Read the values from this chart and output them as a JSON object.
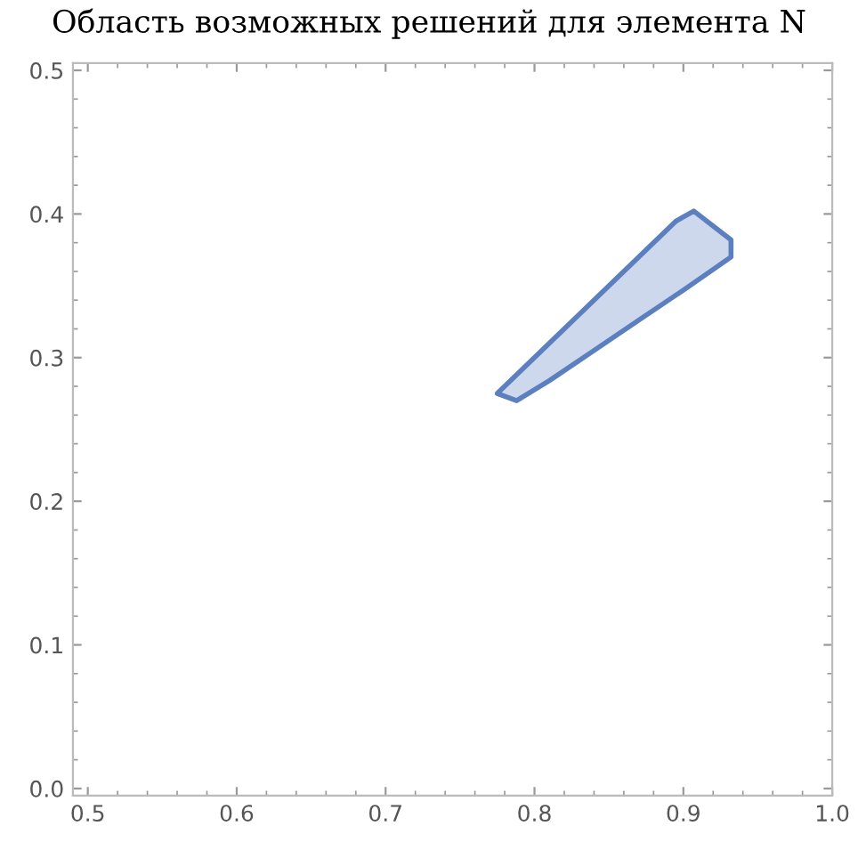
{
  "chart_data": {
    "type": "area",
    "title": "Область возможных решений для элемента N",
    "series": [
      {
        "color": "#5b7fbf",
        "x": [
          0.775,
          0.835,
          0.895,
          0.907,
          0.932,
          0.932,
          0.9,
          0.87,
          0.84,
          0.81,
          0.788,
          0.775
        ],
        "values": [
          0.275,
          0.335,
          0.395,
          0.402,
          0.382,
          0.37,
          0.347,
          0.326,
          0.305,
          0.284,
          0.27,
          0.275
        ]
      }
    ],
    "xlim": [
      0.49,
      1.0
    ],
    "ylim": [
      -0.005,
      0.505
    ],
    "xticks": [
      {
        "value": 0.5,
        "label": "0.5"
      },
      {
        "value": 0.6,
        "label": "0.6"
      },
      {
        "value": 0.7,
        "label": "0.7"
      },
      {
        "value": 0.8,
        "label": "0.8"
      },
      {
        "value": 0.9,
        "label": "0.9"
      },
      {
        "value": 1.0,
        "label": "1.0"
      }
    ],
    "yticks": [
      {
        "value": 0.0,
        "label": "0.0"
      },
      {
        "value": 0.1,
        "label": "0.1"
      },
      {
        "value": 0.2,
        "label": "0.2"
      },
      {
        "value": 0.3,
        "label": "0.3"
      },
      {
        "value": 0.4,
        "label": "0.4"
      },
      {
        "value": 0.5,
        "label": "0.5"
      }
    ],
    "grid": false
  }
}
